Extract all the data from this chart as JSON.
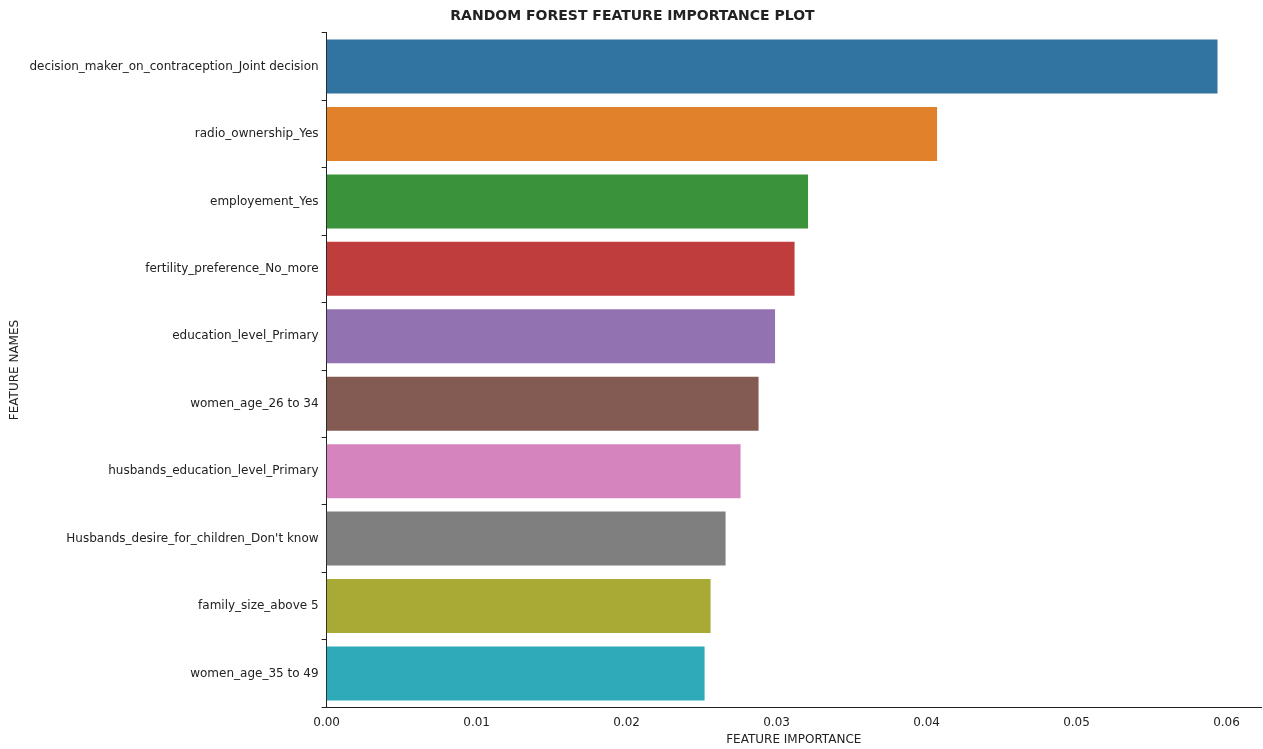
{
  "chart_data": {
    "type": "bar",
    "orientation": "horizontal",
    "title": "RANDOM FOREST FEATURE IMPORTANCE PLOT",
    "xlabel": "FEATURE IMPORTANCE",
    "ylabel": "FEATURE NAMES",
    "categories": [
      "decision_maker_on_contraception_Joint decision",
      "radio_ownership_Yes",
      "employement_Yes",
      "fertility_preference_No_more",
      "education_level_Primary",
      "women_age_26 to 34",
      "husbands_education_level_Primary",
      "Husbands_desire_for_children_Don't know",
      "family_size_above 5",
      "women_age_35 to 49"
    ],
    "values": [
      0.0594,
      0.0407,
      0.0321,
      0.0312,
      0.0299,
      0.0288,
      0.0276,
      0.0266,
      0.0256,
      0.0252
    ],
    "colors": [
      "#3274a1",
      "#e1812c",
      "#3a923a",
      "#c03d3e",
      "#9372b2",
      "#845b53",
      "#d684bd",
      "#7f7f7f",
      "#a9aa35",
      "#2eaab8"
    ],
    "xlim": [
      0,
      0.0623
    ],
    "xticks": [
      {
        "value": 0,
        "label": "0.00"
      },
      {
        "value": 0.01,
        "label": "0.01"
      },
      {
        "value": 0.02,
        "label": "0.02"
      },
      {
        "value": 0.03,
        "label": "0.03"
      },
      {
        "value": 0.04,
        "label": "0.04"
      },
      {
        "value": 0.05,
        "label": "0.05"
      },
      {
        "value": 0.06,
        "label": "0.06"
      }
    ],
    "grid": false,
    "legend": false
  }
}
